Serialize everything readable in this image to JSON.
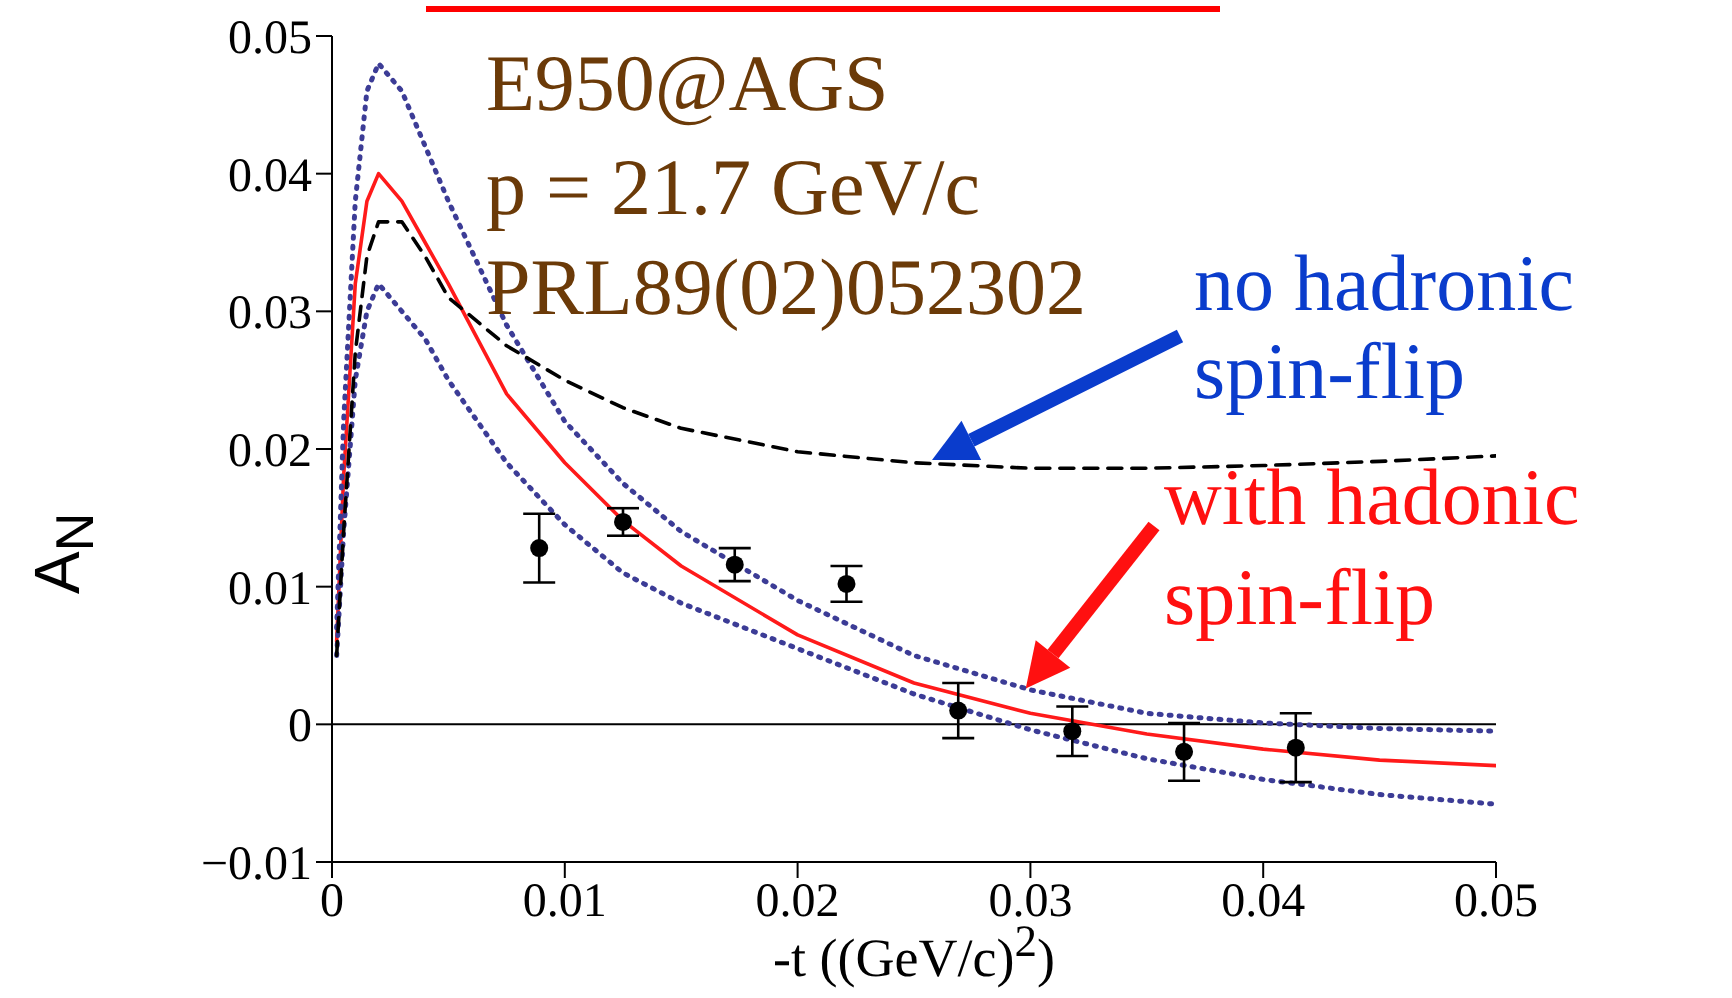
{
  "chart_data": {
    "type": "line",
    "xlabel": "-t ((GeV/c)$^{2}$)",
    "ylabel": "A$_{N}$",
    "xlim": [
      0,
      0.05
    ],
    "ylim": [
      -0.01,
      0.05
    ],
    "xticks": [
      0,
      0.01,
      0.02,
      0.03,
      0.04,
      0.05
    ],
    "yticks": [
      {
        "value": -0.01,
        "label": "−0.01"
      },
      0,
      0.01,
      0.02,
      0.03,
      0.04,
      0.05
    ],
    "ref_lines": [
      {
        "axis": "y",
        "value": 0,
        "color": "#000000"
      }
    ],
    "annotations": [
      "E950@AGS",
      "p = 21.7 GeV/c",
      "PRL89(02)052302",
      "no hadronic spin-flip",
      {
        "text": "with hadonic spin-flip",
        "x": 0.0298,
        "y": 0.0026
      }
    ],
    "series": [
      {
        "color": "#ff1a1a",
        "line_style": "solid",
        "x": [
          0.0002,
          0.0005,
          0.001,
          0.0015,
          0.002,
          0.003,
          0.004,
          0.005,
          0.0075,
          0.01,
          0.0125,
          0.015,
          0.02,
          0.025,
          0.03,
          0.035,
          0.04,
          0.045,
          0.05
        ],
        "values": [
          0.006,
          0.018,
          0.032,
          0.038,
          0.04,
          0.038,
          0.035,
          0.032,
          0.024,
          0.019,
          0.0148,
          0.0115,
          0.0065,
          0.003,
          0.0008,
          -0.0007,
          -0.0018,
          -0.0026,
          -0.003
        ]
      },
      {
        "color": "#3c3c96",
        "line_style": "dotted",
        "x": [
          0.0002,
          0.0005,
          0.001,
          0.0015,
          0.002,
          0.003,
          0.004,
          0.005,
          0.0075,
          0.01,
          0.0125,
          0.015,
          0.02,
          0.025,
          0.03,
          0.035,
          0.04,
          0.045,
          0.05
        ],
        "values": [
          0.007,
          0.022,
          0.038,
          0.046,
          0.048,
          0.046,
          0.042,
          0.038,
          0.029,
          0.022,
          0.0175,
          0.014,
          0.009,
          0.005,
          0.0025,
          0.0008,
          0.0001,
          -0.0003,
          -0.0005
        ]
      },
      {
        "color": "#3c3c96",
        "line_style": "dotted",
        "x": [
          0.0002,
          0.0005,
          0.001,
          0.0015,
          0.002,
          0.003,
          0.004,
          0.005,
          0.0075,
          0.01,
          0.0125,
          0.015,
          0.02,
          0.025,
          0.03,
          0.035,
          0.04,
          0.045,
          0.05
        ],
        "values": [
          0.005,
          0.014,
          0.025,
          0.03,
          0.032,
          0.03,
          0.028,
          0.025,
          0.019,
          0.0145,
          0.011,
          0.0088,
          0.0055,
          0.0022,
          -0.0004,
          -0.0025,
          -0.004,
          -0.0051,
          -0.0058
        ]
      },
      {
        "color": "#000000",
        "line_style": "dashed",
        "x": [
          0.0002,
          0.0005,
          0.001,
          0.0015,
          0.002,
          0.003,
          0.004,
          0.005,
          0.0075,
          0.01,
          0.0125,
          0.015,
          0.02,
          0.025,
          0.03,
          0.035,
          0.04,
          0.045,
          0.05
        ],
        "values": [
          0.005,
          0.014,
          0.027,
          0.034,
          0.0365,
          0.0365,
          0.034,
          0.031,
          0.0275,
          0.025,
          0.023,
          0.0215,
          0.0198,
          0.019,
          0.0186,
          0.0186,
          0.0188,
          0.0191,
          0.0195
        ]
      },
      {
        "type": "scatter",
        "color": "#000000",
        "marker": "circle",
        "x": [
          0.0089,
          0.0125,
          0.0173,
          0.0221,
          0.0269,
          0.0318,
          0.0366,
          0.0414
        ],
        "values": [
          0.0128,
          0.0147,
          0.0116,
          0.0102,
          0.001,
          -0.0005,
          -0.002,
          -0.0017
        ],
        "errors": [
          0.0025,
          0.001,
          0.0012,
          0.0013,
          0.002,
          0.0018,
          0.0021,
          0.0025
        ]
      }
    ]
  }
}
